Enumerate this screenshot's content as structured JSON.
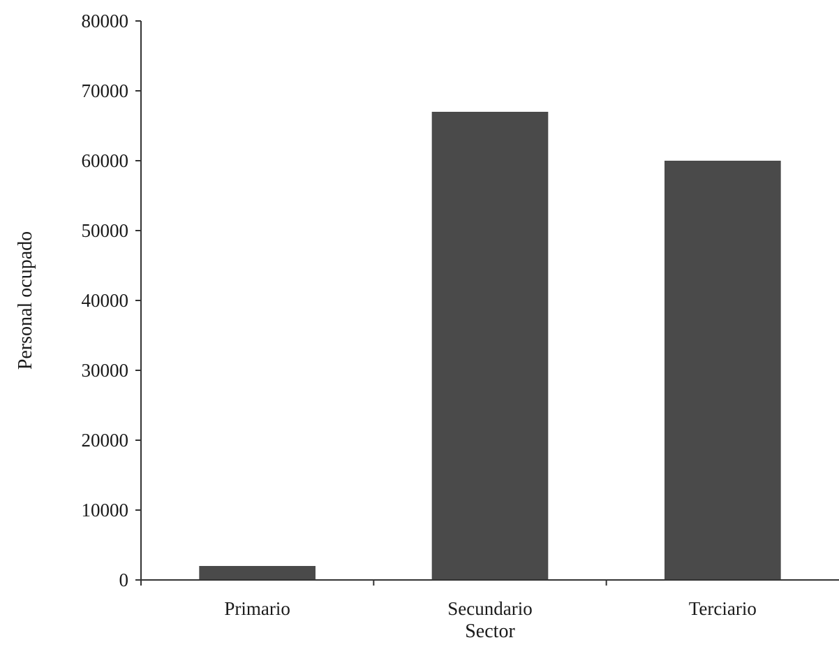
{
  "chart_data": {
    "type": "bar",
    "title": "",
    "xlabel": "Sector",
    "ylabel": "Personal ocupado",
    "categories": [
      "Primario",
      "Secundario",
      "Terciario"
    ],
    "values": [
      2000,
      67000,
      60000
    ],
    "ylim": [
      0,
      80000
    ],
    "yticks": [
      "0",
      "10000",
      "20000",
      "30000",
      "40000",
      "50000",
      "60000",
      "70000",
      "80000"
    ],
    "grid": false,
    "legend": "none",
    "bar_color": "#4a4a4a"
  }
}
